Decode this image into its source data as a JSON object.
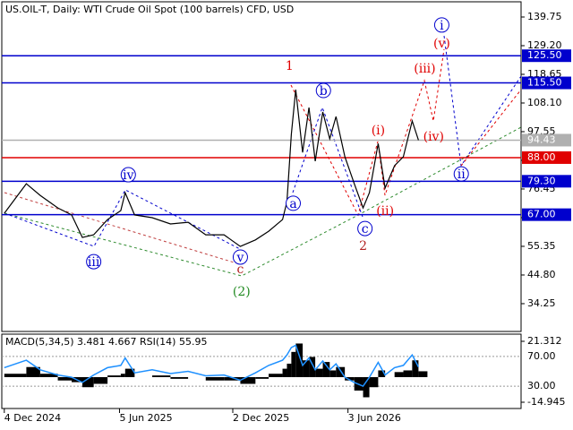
{
  "chart_data": [
    {
      "type": "line",
      "title": "US.OIL-T, Daily:  WTI Crude Oil Spot (100 barrels) CFD, USD",
      "x": [
        "2024-12-04",
        "2025-01-08",
        "2025-01-30",
        "2025-02-27",
        "2025-03-21",
        "2025-04-07",
        "2025-04-25",
        "2025-05-17",
        "2025-06-07",
        "2025-06-14",
        "2025-06-29",
        "2025-07-27",
        "2025-08-25",
        "2025-09-22",
        "2025-10-20",
        "2025-11-18",
        "2025-12-14",
        "2026-01-07",
        "2026-01-28",
        "2026-02-19",
        "2026-02-26",
        "2026-03-05",
        "2026-03-12",
        "2026-03-23",
        "2026-04-02",
        "2026-04-12",
        "2026-04-24",
        "2026-05-05",
        "2026-05-15",
        "2026-05-29",
        "2026-06-13",
        "2026-06-27",
        "2026-07-07",
        "2026-07-21",
        "2026-08-01",
        "2026-08-16",
        "2026-08-30",
        "2026-09-13",
        "2026-09-23"
      ],
      "values": [
        67.5,
        78.4,
        74.1,
        69.5,
        66.9,
        58.6,
        59.6,
        65.2,
        68.5,
        75.1,
        66.9,
        65.9,
        63.6,
        64.2,
        59.6,
        59.6,
        55.3,
        57.7,
        60.9,
        65.2,
        71.8,
        96.6,
        113.0,
        89.9,
        106.4,
        86.7,
        104.8,
        94.9,
        103.1,
        88.3,
        78.4,
        69.5,
        75.1,
        93.2,
        76.8,
        85.0,
        88.3,
        101.5,
        94.43
      ],
      "color": "#000000",
      "xlim": [
        "2024-11-30",
        "2027-03-05"
      ],
      "xticks": [
        {
          "value": "2024-12-04",
          "label": "4 Dec 2024"
        },
        {
          "value": "2025-06-05",
          "label": "5 Jun 2025"
        },
        {
          "value": "2025-12-02",
          "label": "2 Dec 2025"
        },
        {
          "value": "2026-06-03",
          "label": "3 Jun 2026"
        }
      ],
      "ylim": [
        24.02,
        145.35
      ],
      "yticks": [
        139.75,
        {
          "value": 129.2,
          "label": "129.20"
        },
        118.65,
        {
          "value": 108.1,
          "label": "108.10"
        },
        97.55,
        {
          "value": 87,
          "label": "87.00"
        },
        76.45,
        {
          "value": 65.9,
          "label": "65.90"
        },
        55.35,
        {
          "value": 44.8,
          "label": "44.80"
        },
        34.25
      ],
      "levels": [
        {
          "value": 125.5,
          "label": "125.50",
          "color": "#0000cd"
        },
        {
          "value": 115.5,
          "label": "115.50",
          "color": "#0000cd"
        },
        {
          "value": 94.43,
          "label": "94.43",
          "color": "#b0b0b0"
        },
        {
          "value": 88,
          "label": "88.00",
          "color": "#e00000"
        },
        {
          "value": 79.3,
          "label": "79.30",
          "color": "#0000cd"
        },
        {
          "value": 67,
          "label": "67.00",
          "color": "#0000cd"
        }
      ],
      "annotations": [
        {
          "text": "i",
          "x": "2026-10-30",
          "y": 136.8,
          "color": "#0000cd",
          "circled": true
        },
        {
          "text": "(v)",
          "x": "2026-10-30",
          "y": 130.2,
          "color": "#e00000",
          "circled": false
        },
        {
          "text": "(iii)",
          "x": "2026-10-03",
          "y": 121.0,
          "color": "#e00000",
          "circled": false
        },
        {
          "text": "1",
          "x": "2026-03-02",
          "y": 122.0,
          "color": "#e00000",
          "circled": false
        },
        {
          "text": "b",
          "x": "2026-04-25",
          "y": 112.7,
          "color": "#0000cd",
          "circled": true
        },
        {
          "text": "(i)",
          "x": "2026-07-21",
          "y": 98.2,
          "color": "#e00000",
          "circled": false
        },
        {
          "text": "(iv)",
          "x": "2026-10-17",
          "y": 95.9,
          "color": "#e00000",
          "circled": false
        },
        {
          "text": "ii",
          "x": "2026-11-30",
          "y": 82.0,
          "color": "#0000cd",
          "circled": true
        },
        {
          "text": "iv",
          "x": "2025-06-19",
          "y": 81.7,
          "color": "#0000cd",
          "circled": true
        },
        {
          "text": "a",
          "x": "2026-03-08",
          "y": 71.2,
          "color": "#0000cd",
          "circled": true
        },
        {
          "text": "(ii)",
          "x": "2026-08-01",
          "y": 68.5,
          "color": "#e00000",
          "circled": false
        },
        {
          "text": "c",
          "x": "2026-06-30",
          "y": 61.9,
          "color": "#0000cd",
          "circled": true
        },
        {
          "text": "2",
          "x": "2026-06-27",
          "y": 55.7,
          "color": "#b22222",
          "circled": false
        },
        {
          "text": "iii",
          "x": "2025-04-25",
          "y": 49.7,
          "color": "#0000cd",
          "circled": true
        },
        {
          "text": "v",
          "x": "2025-12-14",
          "y": 51.4,
          "color": "#0000cd",
          "circled": true
        },
        {
          "text": "c",
          "x": "2025-12-14",
          "y": 47.1,
          "color": "#b22222",
          "circled": false
        },
        {
          "text": "(2)",
          "x": "2025-12-16",
          "y": 38.9,
          "color": "#228b22",
          "circled": false
        }
      ]
    },
    {
      "type": "indicator",
      "title": "MACD(5,34,5) 3.481 4.667 RSI(14) 55.95",
      "x": [
        "2024-12-04",
        "2025-01-08",
        "2025-01-30",
        "2025-02-27",
        "2025-03-21",
        "2025-04-07",
        "2025-04-25",
        "2025-05-17",
        "2025-06-07",
        "2025-06-14",
        "2025-06-29",
        "2025-07-27",
        "2025-08-25",
        "2025-09-22",
        "2025-10-20",
        "2025-11-18",
        "2025-12-14",
        "2026-01-07",
        "2026-01-28",
        "2026-02-19",
        "2026-02-26",
        "2026-03-05",
        "2026-03-12",
        "2026-03-23",
        "2026-04-02",
        "2026-04-12",
        "2026-04-24",
        "2026-05-05",
        "2026-05-15",
        "2026-05-29",
        "2026-06-13",
        "2026-06-27",
        "2026-07-07",
        "2026-07-21",
        "2026-08-01",
        "2026-08-16",
        "2026-08-30",
        "2026-09-13",
        "2026-09-23"
      ],
      "series": [
        {
          "type": "bar",
          "color": "#000000",
          "values": [
            2,
            6,
            2,
            -2,
            -3,
            -6,
            -4,
            1,
            2,
            5,
            0,
            1,
            -1,
            0,
            -2,
            -2,
            -4,
            -1,
            2,
            5,
            8,
            15,
            20,
            10,
            12,
            5,
            9,
            4,
            6,
            -2,
            -8,
            -12,
            -6,
            4,
            0,
            3,
            4,
            10,
            3.481
          ]
        },
        {
          "type": "line",
          "color": "#1e90ff",
          "axis": "y2",
          "values": [
            55,
            65,
            52,
            45,
            42,
            35,
            45,
            55,
            58,
            68,
            48,
            52,
            47,
            50,
            44,
            45,
            38,
            48,
            58,
            65,
            72,
            82,
            85,
            58,
            68,
            52,
            64,
            52,
            60,
            42,
            35,
            30,
            42,
            62,
            45,
            55,
            58,
            72,
            55.95
          ]
        }
      ],
      "xlim": [
        "2024-11-30",
        "2027-03-05"
      ],
      "ylim": [
        -18.68,
        25.58
      ],
      "yticks": [
        21.312,
        -14.945
      ],
      "y2lim": [
        0,
        100
      ],
      "y2ticks": [
        {
          "value": 70,
          "label": "70.00"
        },
        {
          "value": 30,
          "label": "30.00"
        }
      ]
    }
  ]
}
